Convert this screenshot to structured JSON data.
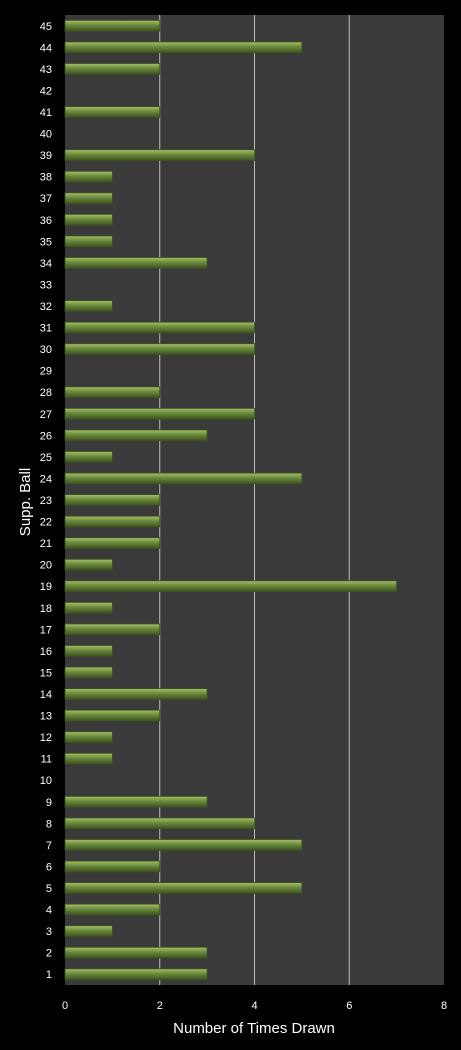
{
  "chart_data": {
    "type": "bar",
    "orientation": "horizontal",
    "title": "",
    "xlabel": "Number of Times Drawn",
    "ylabel": "Supp. Ball",
    "xlim": [
      0,
      8
    ],
    "xticks": [
      0,
      2,
      4,
      6,
      8
    ],
    "grid": "vertical",
    "legend": "none",
    "categories": [
      "1",
      "2",
      "3",
      "4",
      "5",
      "6",
      "7",
      "8",
      "9",
      "10",
      "11",
      "12",
      "13",
      "14",
      "15",
      "16",
      "17",
      "18",
      "19",
      "20",
      "21",
      "22",
      "23",
      "24",
      "25",
      "26",
      "27",
      "28",
      "29",
      "30",
      "31",
      "32",
      "33",
      "34",
      "35",
      "36",
      "37",
      "38",
      "39",
      "40",
      "41",
      "42",
      "43",
      "44",
      "45"
    ],
    "values": [
      3,
      3,
      1,
      2,
      5,
      2,
      5,
      4,
      3,
      0,
      1,
      1,
      2,
      3,
      1,
      1,
      2,
      1,
      7,
      1,
      2,
      2,
      2,
      5,
      1,
      3,
      4,
      2,
      0,
      4,
      4,
      1,
      0,
      3,
      1,
      1,
      1,
      1,
      4,
      0,
      2,
      0,
      2,
      5,
      2
    ],
    "colors": {
      "background": "#000000",
      "plot_area": "#3a3a3a",
      "bar_fill": "#6b8a3c",
      "bar_highlight": "#a4c068",
      "bar_shadow": "#3d5220",
      "gridline": "#bdbdbd",
      "text": "#ffffff"
    }
  }
}
